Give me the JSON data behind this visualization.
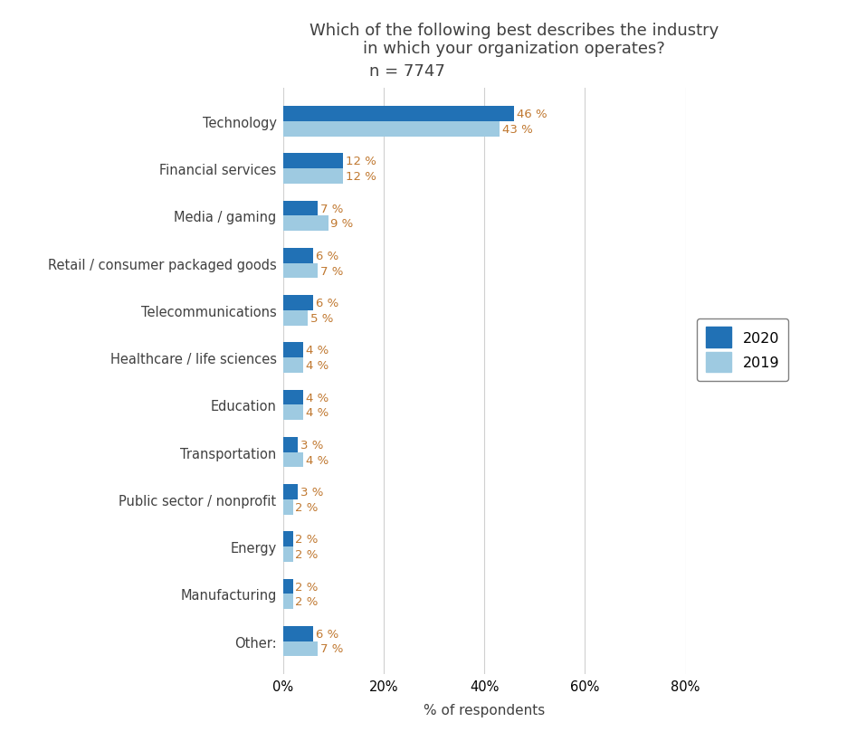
{
  "title_line1": "Which of the following best describes the industry",
  "title_line2": "in which your organization operates?",
  "subtitle": "n = 7747",
  "categories": [
    "Technology",
    "Financial services",
    "Media / gaming",
    "Retail / consumer packaged goods",
    "Telecommunications",
    "Healthcare / life sciences",
    "Education",
    "Transportation",
    "Public sector / nonprofit",
    "Energy",
    "Manufacturing",
    "Other:"
  ],
  "values_2020": [
    46,
    12,
    7,
    6,
    6,
    4,
    4,
    3,
    3,
    2,
    2,
    6
  ],
  "values_2019": [
    43,
    12,
    9,
    7,
    5,
    4,
    4,
    4,
    2,
    2,
    2,
    7
  ],
  "color_2020": "#2171b5",
  "color_2019": "#9ecae1",
  "xlabel": "% of respondents",
  "xlim": [
    0,
    80
  ],
  "xticks": [
    0,
    20,
    40,
    60,
    80
  ],
  "xtick_labels": [
    "0%",
    "20%",
    "40%",
    "60%",
    "80%"
  ],
  "bar_height": 0.32,
  "background_color": "#ffffff",
  "label_color": "#c07830",
  "legend_labels": [
    "2020",
    "2019"
  ],
  "grid_color": "#d0d0d0",
  "title_color": "#404040",
  "category_color": "#404040",
  "legend_edge_color": "#808080"
}
